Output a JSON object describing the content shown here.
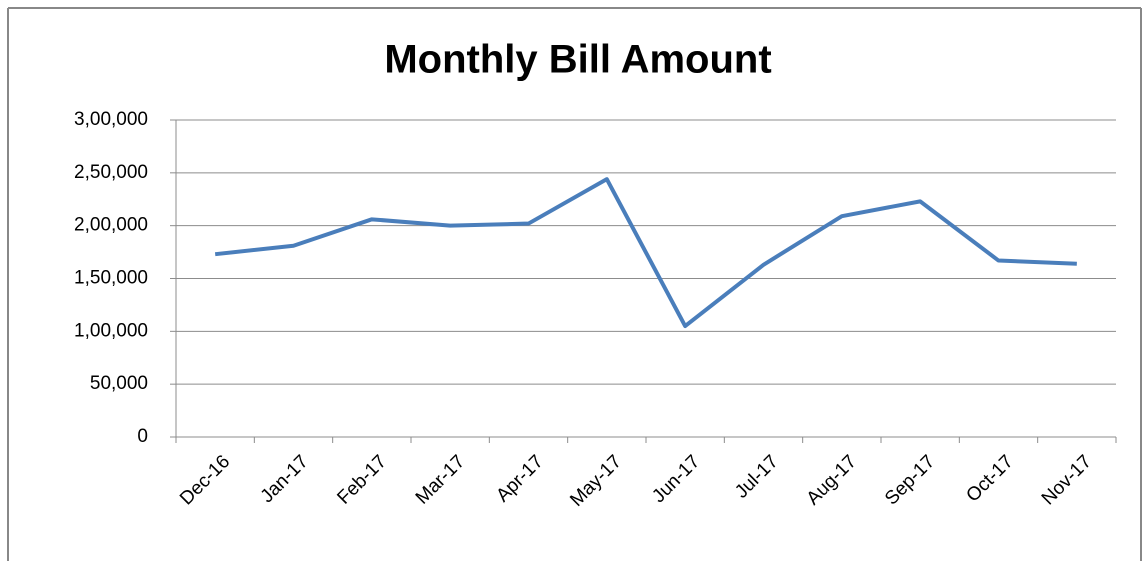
{
  "chart_data": {
    "type": "line",
    "title": "Monthly Bill Amount",
    "categories": [
      "Dec-16",
      "Jan-17",
      "Feb-17",
      "Mar-17",
      "Apr-17",
      "May-17",
      "Jun-17",
      "Jul-17",
      "Aug-17",
      "Sep-17",
      "Oct-17",
      "Nov-17"
    ],
    "values": [
      173000,
      181000,
      206000,
      200000,
      202000,
      244000,
      105000,
      163000,
      209000,
      223000,
      167000,
      164000
    ],
    "color": "#4a7ebb",
    "ylim": [
      0,
      300000
    ],
    "yticks": [
      0,
      {
        "value": 50000,
        "label": "50,000"
      },
      {
        "value": 100000,
        "label": "1,00,000"
      },
      {
        "value": 150000,
        "label": "1,50,000"
      },
      {
        "value": 200000,
        "label": "2,00,000"
      },
      {
        "value": 250000,
        "label": "2,50,000"
      },
      {
        "value": 300000,
        "label": "3,00,000"
      }
    ],
    "grid": true
  }
}
